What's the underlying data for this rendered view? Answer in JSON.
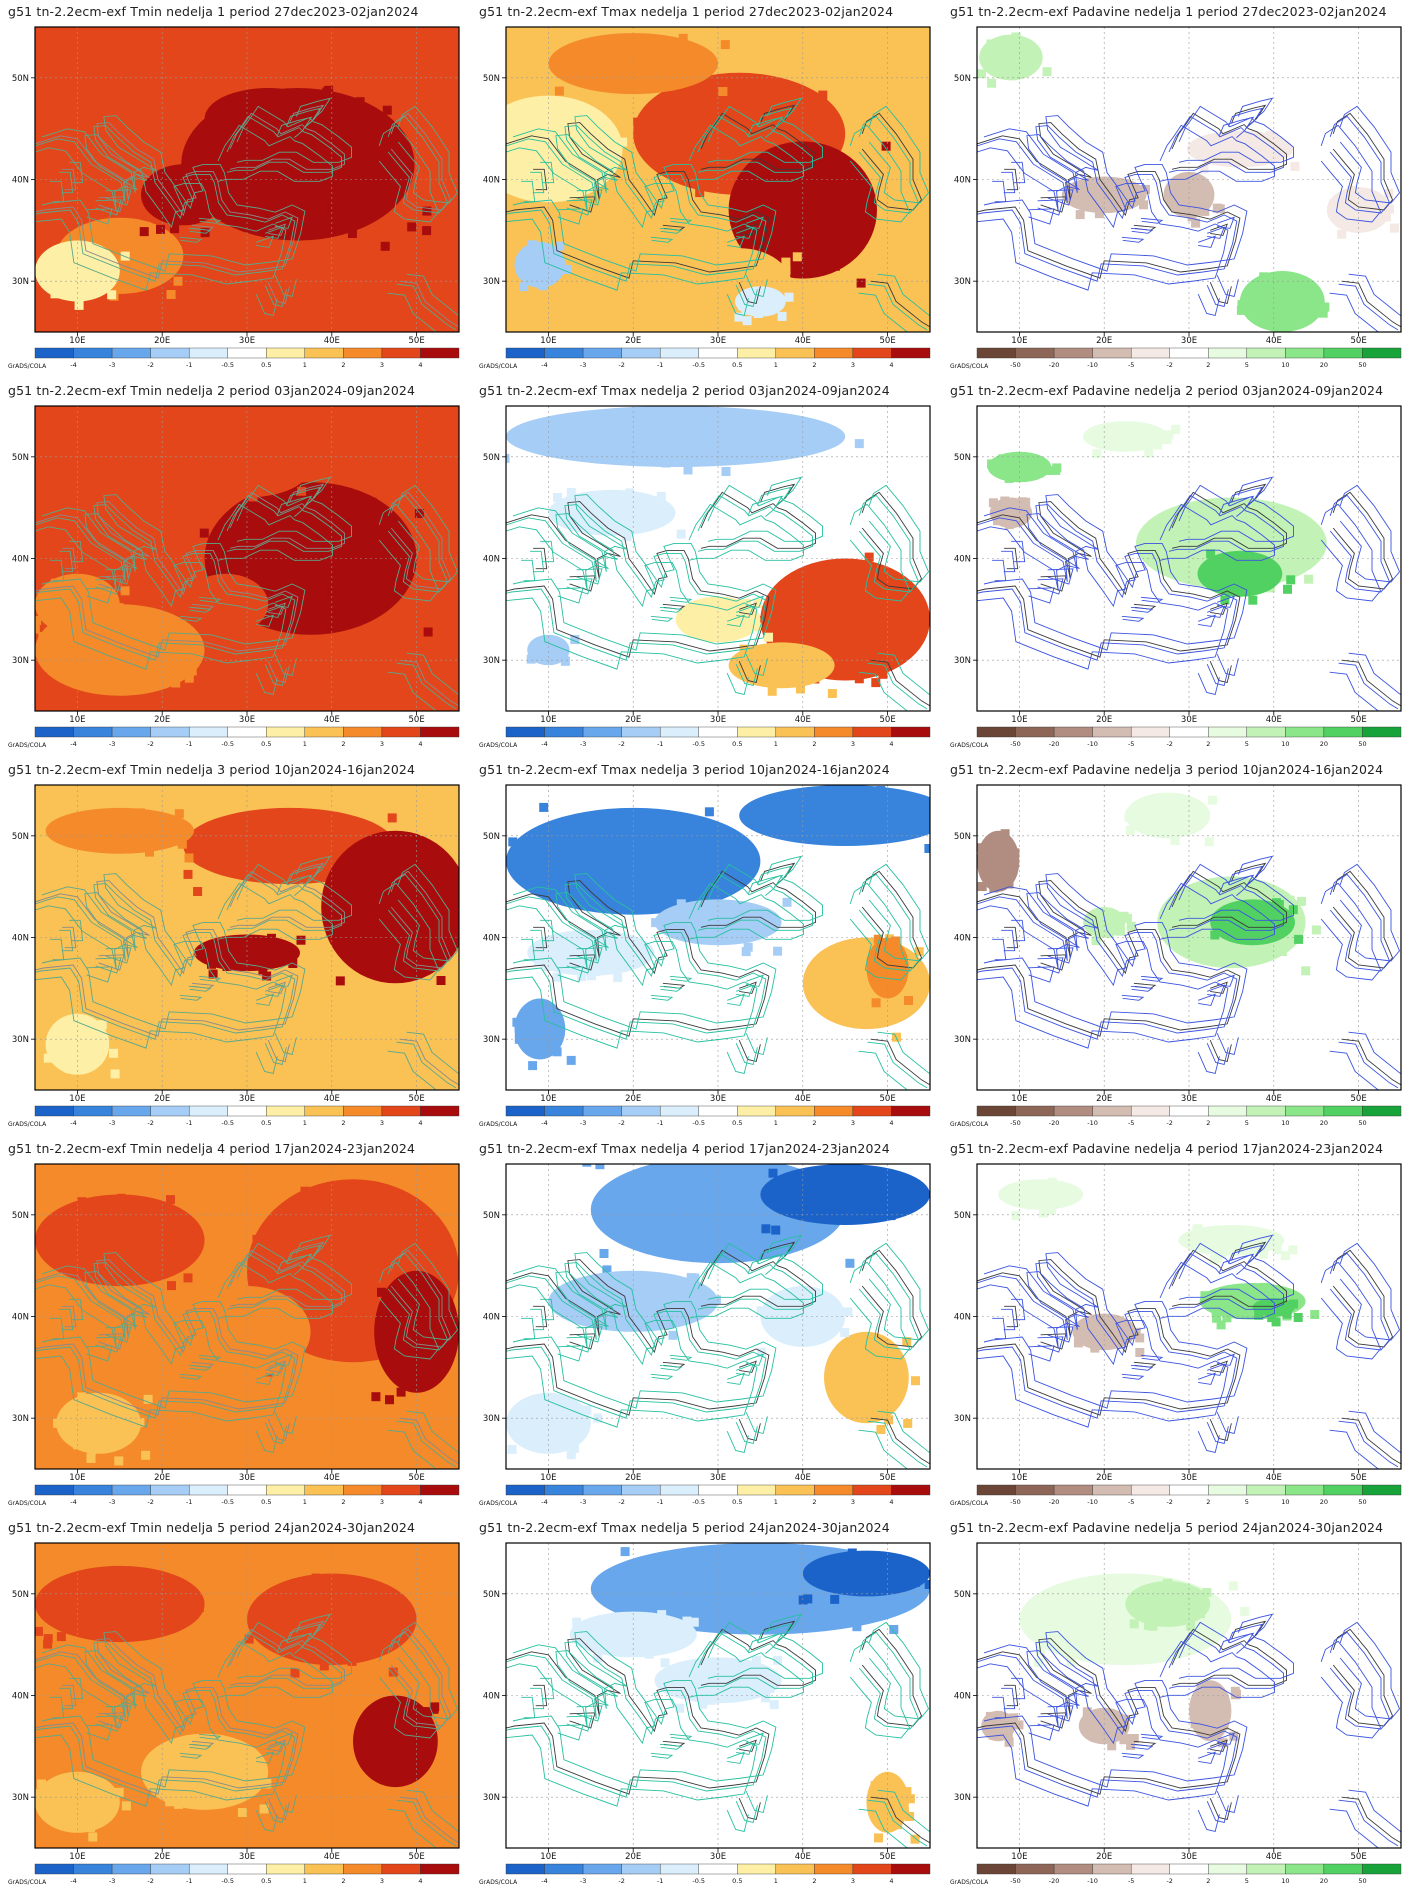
{
  "lon_ticks": [
    "10E",
    "20E",
    "30E",
    "40E",
    "50E"
  ],
  "lat_ticks": [
    "50N",
    "40N",
    "30N"
  ],
  "credit": "GrADS/COLA",
  "temp_scale": {
    "labels": [
      "-4",
      "-3",
      "-2",
      "-1",
      "-0.5",
      "0.5",
      "1",
      "2",
      "3",
      "4"
    ],
    "colors": [
      "#1b63c9",
      "#3883dc",
      "#68a7ec",
      "#a5cdf5",
      "#daeefc",
      "#ffffff",
      "#fdf0a6",
      "#fac155",
      "#f48a2a",
      "#e2461a",
      "#a80c0c"
    ]
  },
  "precip_scale": {
    "labels": [
      "-50",
      "-20",
      "-10",
      "-5",
      "-2",
      "2",
      "5",
      "10",
      "20",
      "50"
    ],
    "colors": [
      "#6b4636",
      "#8e6657",
      "#b08d80",
      "#d3bcb2",
      "#f4e9e4",
      "#ffffff",
      "#e6fbe0",
      "#c2f2b6",
      "#8be68a",
      "#51d161",
      "#17a33a"
    ]
  },
  "rows": [
    {
      "week": "1",
      "tmin": "g51 tn-2.2ecm-exf Tmin nedelja 1 period 27dec2023-02jan2024",
      "tmax": "g51 tn-2.2ecm-exf Tmax nedelja 1 period 27dec2023-02jan2024",
      "pad": "g51 tn-2.2ecm-exf Padavine nedelja 1 period 27dec2023-02jan2024"
    },
    {
      "week": "2",
      "tmin": "g51 tn-2.2ecm-exf Tmin nedelja 2 period 03jan2024-09jan2024",
      "tmax": "g51 tn-2.2ecm-exf Tmax nedelja 2 period 03jan2024-09jan2024",
      "pad": "g51 tn-2.2ecm-exf Padavine nedelja 2 period 03jan2024-09jan2024"
    },
    {
      "week": "3",
      "tmin": "g51 tn-2.2ecm-exf Tmin nedelja 3 period 10jan2024-16jan2024",
      "tmax": "g51 tn-2.2ecm-exf Tmax nedelja 3 period 10jan2024-16jan2024",
      "pad": "g51 tn-2.2ecm-exf Padavine nedelja 3 period 10jan2024-16jan2024"
    },
    {
      "week": "4",
      "tmin": "g51 tn-2.2ecm-exf Tmin nedelja 4 period 17jan2024-23jan2024",
      "tmax": "g51 tn-2.2ecm-exf Tmax nedelja 4 period 17jan2024-23jan2024",
      "pad": "g51 tn-2.2ecm-exf Padavine nedelja 4 period 17jan2024-23jan2024"
    },
    {
      "week": "5",
      "tmin": "g51 tn-2.2ecm-exf Tmin nedelja 5 period 24jan2024-30jan2024",
      "tmax": "g51 tn-2.2ecm-exf Tmax nedelja 5 period 24jan2024-30jan2024",
      "pad": "g51 tn-2.2ecm-exf Padavine nedelja 5 period 24jan2024-30jan2024"
    }
  ],
  "panels": [
    {
      "kind": "tmin",
      "dominant": 9,
      "patches": [
        [
          0.62,
          0.45,
          0.55,
          0.5,
          10
        ],
        [
          0.2,
          0.75,
          0.3,
          0.25,
          8
        ],
        [
          0.1,
          0.8,
          0.2,
          0.2,
          6
        ],
        [
          0.55,
          0.3,
          0.3,
          0.2,
          10
        ],
        [
          0.35,
          0.55,
          0.2,
          0.2,
          10
        ]
      ]
    },
    {
      "kind": "tmax",
      "dominant": 7,
      "patches": [
        [
          0.1,
          0.4,
          0.35,
          0.35,
          6
        ],
        [
          0.55,
          0.35,
          0.5,
          0.4,
          9
        ],
        [
          0.7,
          0.6,
          0.35,
          0.45,
          10
        ],
        [
          0.08,
          0.78,
          0.12,
          0.15,
          3
        ],
        [
          0.55,
          0.85,
          0.25,
          0.25,
          7
        ],
        [
          0.6,
          0.9,
          0.12,
          0.1,
          4
        ],
        [
          0.3,
          0.12,
          0.4,
          0.2,
          8
        ]
      ]
    },
    {
      "kind": "pad",
      "dominant": 5,
      "patches": [
        [
          0.08,
          0.1,
          0.15,
          0.15,
          7
        ],
        [
          0.3,
          0.55,
          0.2,
          0.12,
          3
        ],
        [
          0.5,
          0.55,
          0.12,
          0.15,
          3
        ],
        [
          0.72,
          0.9,
          0.2,
          0.2,
          8
        ],
        [
          0.62,
          0.4,
          0.25,
          0.12,
          4
        ],
        [
          0.9,
          0.6,
          0.15,
          0.15,
          4
        ]
      ]
    },
    {
      "kind": "tmin",
      "dominant": 9,
      "patches": [
        [
          0.2,
          0.8,
          0.4,
          0.3,
          8
        ],
        [
          0.65,
          0.5,
          0.5,
          0.5,
          10
        ],
        [
          0.5,
          0.2,
          0.3,
          0.2,
          9
        ],
        [
          0.1,
          0.65,
          0.2,
          0.2,
          8
        ],
        [
          0.45,
          0.65,
          0.2,
          0.2,
          9
        ]
      ]
    },
    {
      "kind": "tmax",
      "dominant": 5,
      "patches": [
        [
          0.4,
          0.1,
          0.8,
          0.2,
          3
        ],
        [
          0.25,
          0.35,
          0.3,
          0.15,
          4
        ],
        [
          0.8,
          0.7,
          0.4,
          0.4,
          9
        ],
        [
          0.65,
          0.85,
          0.25,
          0.15,
          7
        ],
        [
          0.5,
          0.7,
          0.2,
          0.15,
          6
        ],
        [
          0.1,
          0.8,
          0.1,
          0.1,
          3
        ]
      ]
    },
    {
      "kind": "pad",
      "dominant": 5,
      "patches": [
        [
          0.1,
          0.2,
          0.15,
          0.1,
          8
        ],
        [
          0.6,
          0.45,
          0.45,
          0.3,
          7
        ],
        [
          0.62,
          0.55,
          0.2,
          0.15,
          9
        ],
        [
          0.35,
          0.1,
          0.2,
          0.1,
          6
        ],
        [
          0.08,
          0.35,
          0.1,
          0.1,
          3
        ]
      ]
    },
    {
      "kind": "tmin",
      "dominant": 7,
      "patches": [
        [
          0.6,
          0.2,
          0.5,
          0.25,
          9
        ],
        [
          0.85,
          0.4,
          0.35,
          0.5,
          10
        ],
        [
          0.5,
          0.55,
          0.25,
          0.12,
          10
        ],
        [
          0.2,
          0.15,
          0.35,
          0.15,
          8
        ],
        [
          0.1,
          0.85,
          0.15,
          0.2,
          6
        ],
        [
          0.35,
          0.8,
          0.25,
          0.2,
          7
        ]
      ]
    },
    {
      "kind": "tmax",
      "dominant": 5,
      "patches": [
        [
          0.3,
          0.25,
          0.6,
          0.35,
          1
        ],
        [
          0.8,
          0.1,
          0.5,
          0.2,
          1
        ],
        [
          0.5,
          0.45,
          0.3,
          0.15,
          3
        ],
        [
          0.85,
          0.65,
          0.3,
          0.3,
          7
        ],
        [
          0.9,
          0.6,
          0.1,
          0.2,
          8
        ],
        [
          0.08,
          0.8,
          0.12,
          0.2,
          2
        ],
        [
          0.2,
          0.55,
          0.3,
          0.15,
          4
        ]
      ]
    },
    {
      "kind": "pad",
      "dominant": 5,
      "patches": [
        [
          0.05,
          0.25,
          0.1,
          0.2,
          2
        ],
        [
          0.6,
          0.45,
          0.35,
          0.3,
          7
        ],
        [
          0.65,
          0.45,
          0.2,
          0.15,
          9
        ],
        [
          0.45,
          0.1,
          0.2,
          0.15,
          6
        ],
        [
          0.3,
          0.45,
          0.1,
          0.1,
          7
        ]
      ]
    },
    {
      "kind": "tmin",
      "dominant": 8,
      "patches": [
        [
          0.75,
          0.35,
          0.5,
          0.6,
          9
        ],
        [
          0.9,
          0.55,
          0.2,
          0.4,
          10
        ],
        [
          0.2,
          0.25,
          0.4,
          0.3,
          9
        ],
        [
          0.15,
          0.85,
          0.2,
          0.2,
          7
        ],
        [
          0.5,
          0.55,
          0.3,
          0.3,
          8
        ]
      ]
    },
    {
      "kind": "tmax",
      "dominant": 5,
      "patches": [
        [
          0.5,
          0.15,
          0.6,
          0.35,
          2
        ],
        [
          0.8,
          0.1,
          0.4,
          0.2,
          0
        ],
        [
          0.3,
          0.45,
          0.4,
          0.2,
          3
        ],
        [
          0.85,
          0.7,
          0.2,
          0.3,
          7
        ],
        [
          0.1,
          0.85,
          0.2,
          0.2,
          4
        ],
        [
          0.7,
          0.5,
          0.2,
          0.2,
          4
        ]
      ]
    },
    {
      "kind": "pad",
      "dominant": 5,
      "patches": [
        [
          0.15,
          0.1,
          0.2,
          0.1,
          6
        ],
        [
          0.65,
          0.45,
          0.25,
          0.12,
          8
        ],
        [
          0.7,
          0.47,
          0.1,
          0.06,
          9
        ],
        [
          0.3,
          0.55,
          0.15,
          0.12,
          3
        ],
        [
          0.6,
          0.25,
          0.25,
          0.1,
          6
        ]
      ]
    },
    {
      "kind": "tmin",
      "dominant": 8,
      "patches": [
        [
          0.2,
          0.2,
          0.4,
          0.25,
          9
        ],
        [
          0.7,
          0.25,
          0.4,
          0.3,
          9
        ],
        [
          0.85,
          0.65,
          0.2,
          0.3,
          10
        ],
        [
          0.4,
          0.75,
          0.3,
          0.25,
          7
        ],
        [
          0.1,
          0.85,
          0.2,
          0.2,
          7
        ]
      ]
    },
    {
      "kind": "tmax",
      "dominant": 5,
      "patches": [
        [
          0.6,
          0.15,
          0.8,
          0.3,
          2
        ],
        [
          0.85,
          0.1,
          0.3,
          0.15,
          0
        ],
        [
          0.3,
          0.3,
          0.3,
          0.15,
          4
        ],
        [
          0.9,
          0.85,
          0.1,
          0.2,
          7
        ],
        [
          0.5,
          0.45,
          0.3,
          0.15,
          4
        ]
      ]
    },
    {
      "kind": "pad",
      "dominant": 5,
      "patches": [
        [
          0.35,
          0.25,
          0.5,
          0.3,
          6
        ],
        [
          0.45,
          0.2,
          0.2,
          0.15,
          7
        ],
        [
          0.55,
          0.55,
          0.1,
          0.2,
          3
        ],
        [
          0.3,
          0.6,
          0.12,
          0.12,
          3
        ],
        [
          0.05,
          0.6,
          0.08,
          0.1,
          3
        ]
      ]
    }
  ]
}
